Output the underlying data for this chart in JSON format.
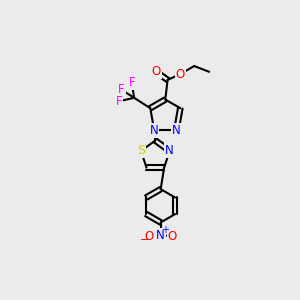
{
  "background_color": "#ebebeb",
  "atom_colors": {
    "C": "#000000",
    "N": "#0000ff",
    "O": "#ff0000",
    "F": "#ff00ff",
    "S": "#cccc00",
    "H": "#000000"
  },
  "figsize": [
    3.0,
    3.0
  ],
  "dpi": 100
}
